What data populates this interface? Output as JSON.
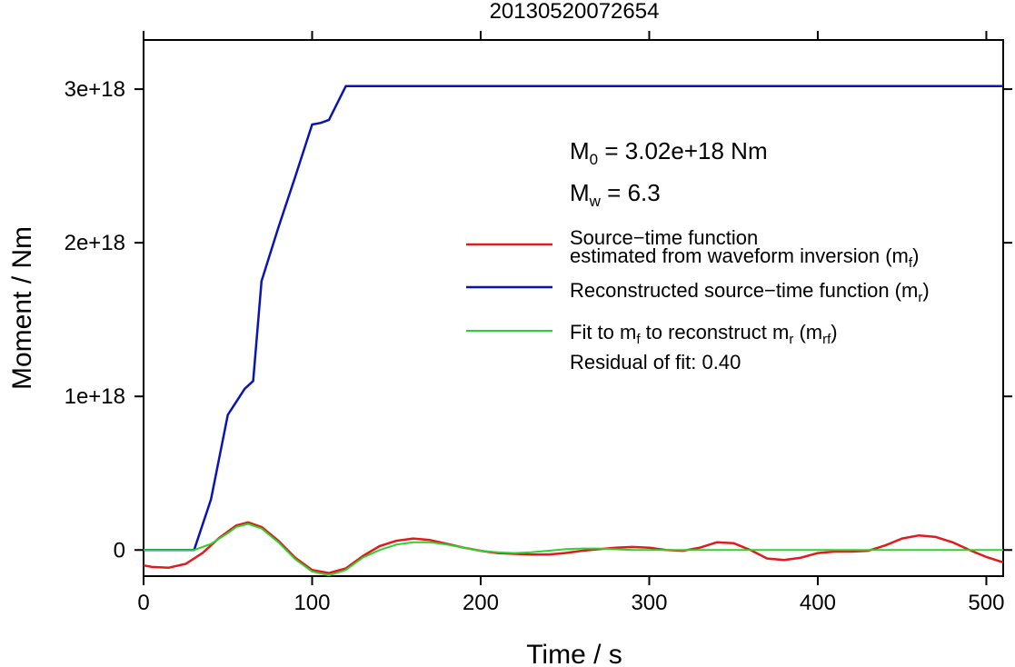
{
  "chart_data": {
    "type": "line",
    "title": "20130520072654",
    "xlabel": "Time / s",
    "ylabel": "Moment / Nm",
    "xlim": [
      0,
      510
    ],
    "ylim": [
      -1.7e+17,
      3.32e+18
    ],
    "x_ticks": [
      0,
      100,
      200,
      300,
      400,
      500
    ],
    "x_tick_labels": [
      "0",
      "100",
      "200",
      "300",
      "400",
      "500"
    ],
    "y_ticks": [
      0,
      1e+18,
      2e+18,
      3e+18
    ],
    "y_tick_labels": [
      "0",
      "1e+18",
      "2e+18",
      "3e+18"
    ],
    "grid": false,
    "annotations": {
      "m0": {
        "prefix": "M",
        "sub": "0",
        "text": " = 3.02e+18 Nm"
      },
      "mw": {
        "prefix": "M",
        "sub": "w",
        "text": " = 6.3"
      },
      "residual": "Residual of fit: 0.40"
    },
    "legend": {
      "placement": "right",
      "entries": [
        {
          "line1": "Source−time function",
          "line2_main": "estimated from waveform inversion (m",
          "line2_sub": "f",
          "line2_end": ")",
          "color": "#e31a1c"
        },
        {
          "main": "Reconstructed source−time function (m",
          "sub": "r",
          "end": ")",
          "color": "#0a14b4"
        },
        {
          "p1": "Fit to m",
          "s1": "f",
          "p2": " to reconstruct m",
          "s2": "r",
          "p3": " (m",
          "s3": "rf",
          "p4": ")",
          "color": "#2ed12e"
        }
      ]
    },
    "series": [
      {
        "name": "Reconstructed source−time function (mr)",
        "color": "#0a14b4",
        "x": [
          0,
          30,
          40,
          50,
          60,
          65,
          70,
          80,
          90,
          100,
          105,
          110,
          120,
          510
        ],
        "values": [
          0,
          0,
          3.3e+17,
          8.8e+17,
          1.05e+18,
          1.1e+18,
          1.75e+18,
          2.1e+18,
          2.43e+18,
          2.77e+18,
          2.78e+18,
          2.8e+18,
          3.02e+18,
          3.02e+18
        ]
      },
      {
        "name": "Source−time function estimated from waveform inversion (mf)",
        "color": "#e31a1c",
        "x": [
          0,
          5,
          15,
          25,
          35,
          45,
          55,
          62,
          70,
          80,
          90,
          100,
          110,
          120,
          130,
          140,
          150,
          160,
          170,
          180,
          190,
          200,
          210,
          220,
          230,
          240,
          250,
          260,
          270,
          280,
          290,
          300,
          310,
          320,
          330,
          340,
          350,
          360,
          370,
          380,
          390,
          400,
          410,
          420,
          430,
          440,
          450,
          460,
          470,
          480,
          490,
          500,
          510
        ],
        "values": [
          -1e+17,
          -1.1e+17,
          -1.15e+17,
          -9e+16,
          -2e+16,
          8e+16,
          1.6e+17,
          1.8e+17,
          1.5e+17,
          6e+16,
          -5e+16,
          -1.3e+17,
          -1.5e+17,
          -1.2e+17,
          -4e+16,
          2.5e+16,
          6e+16,
          7.5e+16,
          6.5e+16,
          4e+16,
          1.5e+16,
          -5000000000000000.0,
          -2e+16,
          -2.5e+16,
          -3e+16,
          -3e+16,
          -2e+16,
          -5000000000000000.0,
          5000000000000000.0,
          1.5e+16,
          2e+16,
          1.5e+16,
          0,
          -5000000000000000.0,
          1.5e+16,
          5e+16,
          4.5e+16,
          0,
          -5.5e+16,
          -6.5e+16,
          -5e+16,
          -2e+16,
          -1e+16,
          -1e+16,
          -5000000000000000.0,
          3e+16,
          7.5e+16,
          9.5e+16,
          8.5e+16,
          5e+16,
          0,
          -4.5e+16,
          -8e+16
        ]
      },
      {
        "name": "Fit to mf to reconstruct mr (mrf)",
        "color": "#2ed12e",
        "x": [
          0,
          30,
          40,
          50,
          55,
          62,
          70,
          80,
          90,
          100,
          110,
          120,
          130,
          140,
          150,
          160,
          170,
          180,
          190,
          200,
          210,
          220,
          230,
          240,
          250,
          260,
          270,
          280,
          290,
          300,
          310,
          320,
          510
        ],
        "values": [
          0,
          0,
          4e+16,
          1.1e+17,
          1.5e+17,
          1.7e+17,
          1.4e+17,
          5e+16,
          -6e+16,
          -1.4e+17,
          -1.65e+17,
          -1.3e+17,
          -5e+16,
          0,
          3.5e+16,
          5e+16,
          5e+16,
          3.5e+16,
          1.5e+16,
          -5000000000000000.0,
          -1.5e+16,
          -2e+16,
          -1.5e+16,
          -5000000000000000.0,
          5000000000000000.0,
          1e+16,
          1e+16,
          5000000000000000.0,
          0,
          0,
          0,
          0,
          0
        ]
      }
    ]
  }
}
